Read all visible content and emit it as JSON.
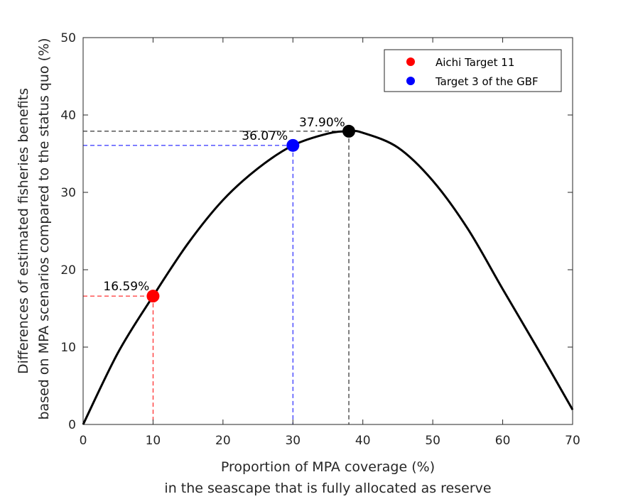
{
  "chart_data": {
    "type": "line",
    "title": "",
    "xlabel": [
      "Proportion of MPA coverage (%)",
      "in the seascape that is fully allocated as reserve"
    ],
    "ylabel": [
      "Differences of estimated fisheries benefits",
      "based on MPA scenarios compared to the status quo (%)"
    ],
    "xlim": [
      0,
      70
    ],
    "ylim": [
      0,
      50
    ],
    "xticks": [
      0,
      10,
      20,
      30,
      40,
      50,
      60,
      70
    ],
    "yticks": [
      0,
      10,
      20,
      30,
      40,
      50
    ],
    "xtick_labels": [
      "0",
      "10",
      "20",
      "30",
      "40",
      "50",
      "60",
      "70"
    ],
    "ytick_labels": [
      "0",
      "10",
      "20",
      "30",
      "40",
      "50"
    ],
    "grid": false,
    "series": [
      {
        "color": "#000000",
        "x": [
          0,
          5,
          10,
          15,
          20,
          25,
          30,
          35,
          38,
          40,
          45,
          50,
          55,
          60,
          65,
          70
        ],
        "y": [
          0,
          9.3,
          16.59,
          23.4,
          29.0,
          33.1,
          36.07,
          37.6,
          37.9,
          37.7,
          35.8,
          31.5,
          25.3,
          17.5,
          9.8,
          1.9
        ]
      }
    ],
    "highlight_points": [
      {
        "x": 10,
        "y": 16.59,
        "label": "16.59%",
        "color": "#ff0000"
      },
      {
        "x": 30,
        "y": 36.07,
        "label": "36.07%",
        "color": "#0000ff"
      },
      {
        "x": 38,
        "y": 37.9,
        "label": "37.90%",
        "color": "#000000"
      }
    ],
    "legend": {
      "position": "top-right",
      "entries": [
        {
          "label": "Aichi Target 11",
          "color": "#ff0000"
        },
        {
          "label": "Target 3 of the GBF",
          "color": "#0000ff"
        }
      ]
    }
  }
}
